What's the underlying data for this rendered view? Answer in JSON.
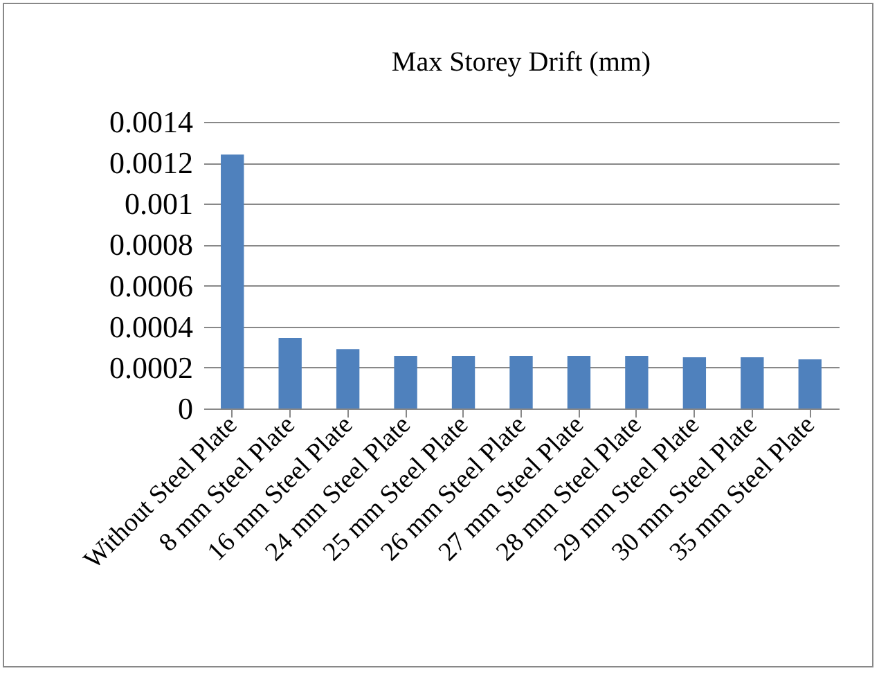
{
  "chart_data": {
    "type": "bar",
    "title": "Max Storey Drift (mm)",
    "categories": [
      "Without Steel Plate",
      "8 mm Steel Plate",
      "16 mm Steel Plate",
      "24 mm Steel Plate",
      "25 mm Steel Plate",
      "26 mm Steel Plate",
      "27 mm Steel Plate",
      "28 mm Steel Plate",
      "29 mm Steel Plate",
      "30 mm Steel Plate",
      "35 mm Steel Plate"
    ],
    "values": [
      0.00124,
      0.000345,
      0.00029,
      0.000257,
      0.000257,
      0.000257,
      0.000257,
      0.000257,
      0.00025,
      0.00025,
      0.00024
    ],
    "color": "#4f81bd",
    "ylim": [
      0,
      0.0014
    ],
    "yticks": [
      0,
      0.0002,
      0.0004,
      0.0006,
      0.0008,
      0.001,
      0.0012,
      0.0014
    ],
    "grid": "y"
  }
}
